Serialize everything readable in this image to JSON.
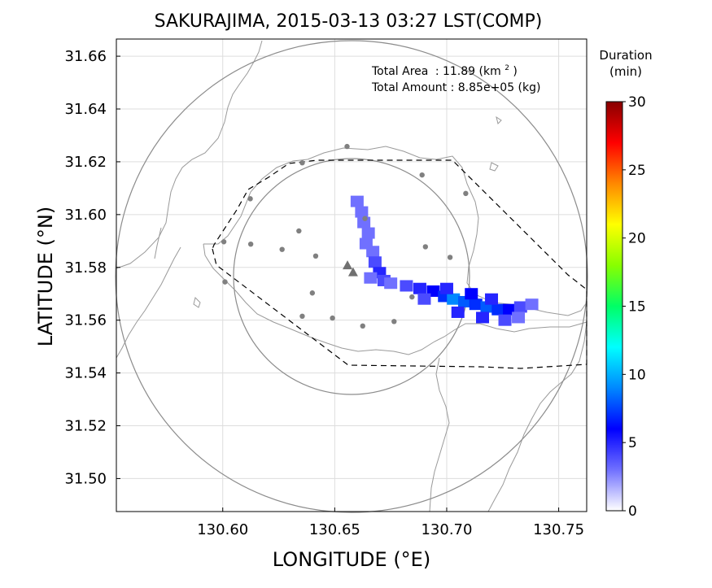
{
  "chart_data": {
    "type": "heatmap",
    "title": "SAKURAJIMA, 2015-03-13 03:27 LST(COMP)",
    "xlabel": "LONGITUDE (°E)",
    "ylabel": "LATITUDE (°N)",
    "xlim": [
      130.5525,
      130.7625
    ],
    "ylim": [
      31.4875,
      31.6665
    ],
    "xticks": [
      "130.60",
      "130.65",
      "130.70",
      "130.75"
    ],
    "yticks": [
      "31.50",
      "31.52",
      "31.54",
      "31.56",
      "31.58",
      "31.60",
      "31.62",
      "31.64",
      "31.66"
    ],
    "grid": true,
    "annotations": {
      "area_label": "Total Area",
      "area_value": ": 11.89 (km",
      "area_sup": "2",
      "area_close": ")",
      "amount_text": "Total Amount : 8.85e+05 (kg)"
    },
    "colorbar": {
      "title_line1": "Duration",
      "title_line2": "(min)",
      "range": [
        0,
        30
      ],
      "ticks": [
        "0",
        "5",
        "10",
        "15",
        "20",
        "25",
        "30"
      ],
      "colors": [
        "#ffffff",
        "#7070ff",
        "#0000ff",
        "#0088ff",
        "#00ffff",
        "#00ff66",
        "#88ff00",
        "#ffff00",
        "#ff8800",
        "#ff0000",
        "#880000"
      ]
    },
    "vent_markers": [
      [
        130.6557,
        31.5808
      ],
      [
        130.6582,
        31.5782
      ]
    ],
    "station_points": [
      [
        130.6555,
        31.6258
      ],
      [
        130.6355,
        31.6196
      ],
      [
        130.689,
        31.615
      ],
      [
        130.7085,
        31.608
      ],
      [
        130.6123,
        31.606
      ],
      [
        130.6635,
        31.5985
      ],
      [
        130.6005,
        31.5897
      ],
      [
        130.6125,
        31.5888
      ],
      [
        130.634,
        31.5938
      ],
      [
        130.6265,
        31.5868
      ],
      [
        130.6415,
        31.5843
      ],
      [
        130.6905,
        31.5878
      ],
      [
        130.7015,
        31.5838
      ],
      [
        130.601,
        31.5745
      ],
      [
        130.64,
        31.5703
      ],
      [
        130.6845,
        31.5688
      ],
      [
        130.6355,
        31.5615
      ],
      [
        130.649,
        31.5608
      ],
      [
        130.6625,
        31.5578
      ],
      [
        130.6765,
        31.5595
      ]
    ],
    "deposit_cells": [
      [
        130.66,
        31.605,
        3
      ],
      [
        130.662,
        31.601,
        3
      ],
      [
        130.663,
        31.597,
        3
      ],
      [
        130.665,
        31.593,
        3
      ],
      [
        130.664,
        31.589,
        3
      ],
      [
        130.667,
        31.586,
        3
      ],
      [
        130.668,
        31.582,
        4
      ],
      [
        130.67,
        31.578,
        5
      ],
      [
        130.666,
        31.576,
        3
      ],
      [
        130.672,
        31.575,
        4
      ],
      [
        130.675,
        31.574,
        3
      ],
      [
        130.682,
        31.573,
        4
      ],
      [
        130.688,
        31.572,
        5
      ],
      [
        130.694,
        31.571,
        6
      ],
      [
        130.699,
        31.569,
        7
      ],
      [
        130.703,
        31.568,
        9
      ],
      [
        130.708,
        31.567,
        8
      ],
      [
        130.713,
        31.566,
        7
      ],
      [
        130.718,
        31.565,
        8
      ],
      [
        130.723,
        31.564,
        7
      ],
      [
        130.728,
        31.564,
        6
      ],
      [
        130.733,
        31.565,
        4
      ],
      [
        130.738,
        31.566,
        3
      ],
      [
        130.7,
        31.572,
        5
      ],
      [
        130.711,
        31.57,
        6
      ],
      [
        130.72,
        31.568,
        5
      ],
      [
        130.705,
        31.563,
        5
      ],
      [
        130.716,
        31.561,
        5
      ],
      [
        130.726,
        31.56,
        4
      ],
      [
        130.69,
        31.568,
        4
      ],
      [
        130.732,
        31.561,
        3
      ]
    ]
  }
}
